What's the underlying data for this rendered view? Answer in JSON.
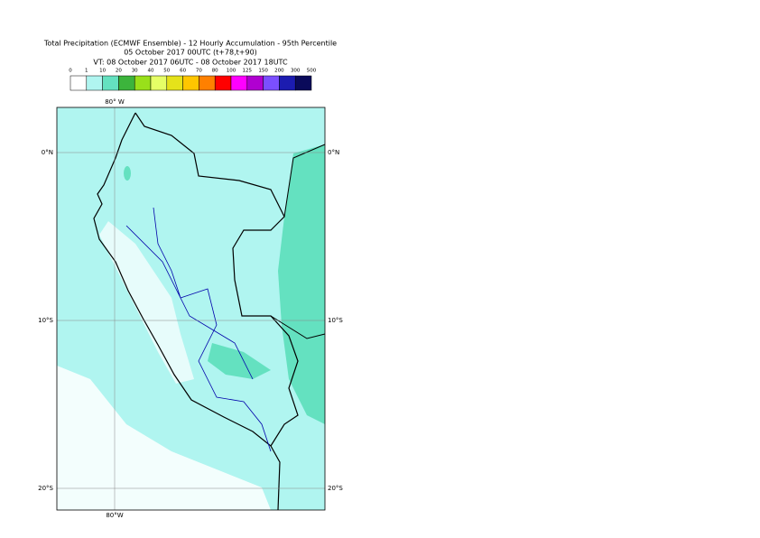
{
  "header": {
    "title": "Total Precipitation (ECMWF Ensemble) - 12 Hourly Accumulation - 95th Percentile",
    "base_time": "05 October 2017 00UTC (t+78,t+90)",
    "valid_time": "VT: 08 October 2017 06UTC - 08 October 2017 18UTC"
  },
  "legend": {
    "labels": [
      0,
      1,
      10,
      20,
      30,
      40,
      50,
      60,
      70,
      80,
      100,
      125,
      150,
      200,
      300,
      500
    ],
    "colors": [
      "#ffffff",
      "#b0f5f0",
      "#64e1c0",
      "#3cb43c",
      "#99e01a",
      "#e6ff66",
      "#e5e21a",
      "#ffc600",
      "#ff8000",
      "#ff0000",
      "#ff00ff",
      "#b000d0",
      "#7b4fff",
      "#1c1cb0",
      "#0a0a5a"
    ]
  },
  "map": {
    "lon_label_top": "80° W",
    "lon_label_bottom": "80°W",
    "lat_labels": [
      "0°N",
      "10°S",
      "20°S"
    ]
  }
}
